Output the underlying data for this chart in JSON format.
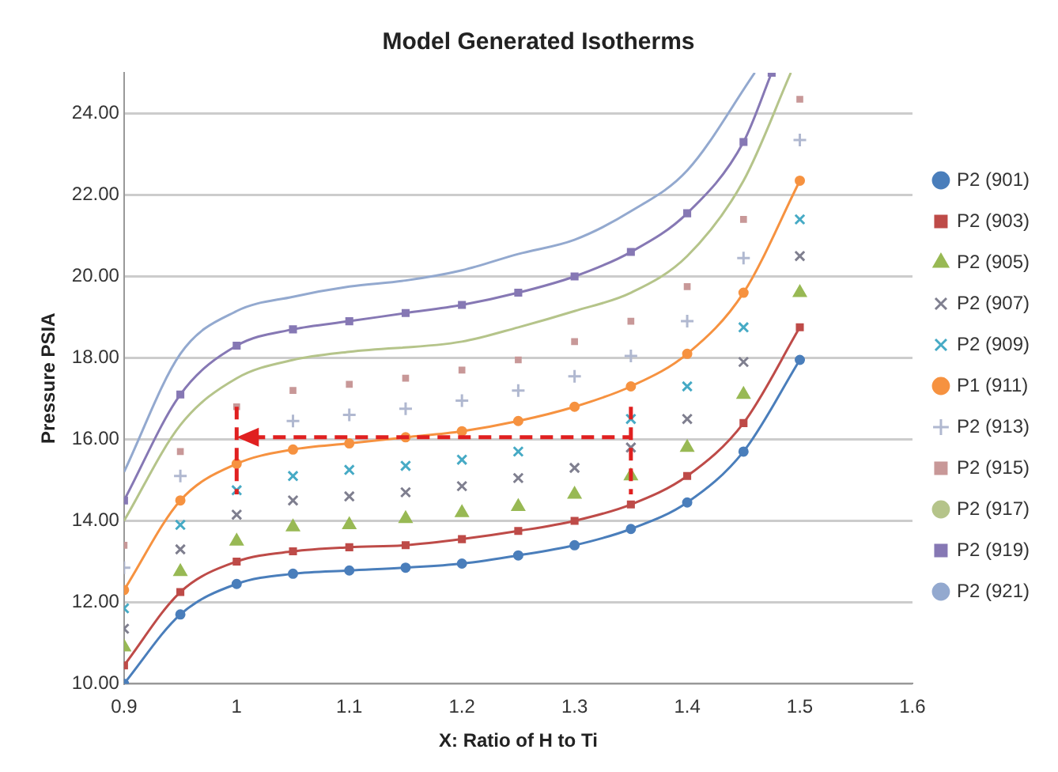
{
  "chart_data": {
    "type": "line",
    "title": "Model Generated Isotherms",
    "xlabel": "X: Ratio of H to Ti",
    "ylabel": "Pressure PSIA",
    "x": [
      0.9,
      0.95,
      1.0,
      1.05,
      1.1,
      1.15,
      1.2,
      1.25,
      1.3,
      1.35,
      1.4,
      1.45,
      1.5
    ],
    "xlim": [
      0.9,
      1.6
    ],
    "xticks": [
      0.9,
      1,
      1.1,
      1.2,
      1.3,
      1.4,
      1.5,
      1.6
    ],
    "ylim": [
      10,
      25
    ],
    "yticks": [
      {
        "value": 10,
        "label": "10.00"
      },
      {
        "value": 12,
        "label": "12.00"
      },
      {
        "value": 14,
        "label": "14.00"
      },
      {
        "value": 16,
        "label": "16.00"
      },
      {
        "value": 18,
        "label": "18.00"
      },
      {
        "value": 20,
        "label": "20.00"
      },
      {
        "value": 22,
        "label": "22.00"
      },
      {
        "value": 24,
        "label": "24.00"
      }
    ],
    "grid": "y",
    "legend": "right",
    "series": [
      {
        "name": "P2 (901)",
        "color": "#4a7ebb",
        "marker": "circle",
        "values": [
          10.0,
          11.7,
          12.45,
          12.7,
          12.78,
          12.85,
          12.95,
          13.15,
          13.4,
          13.8,
          14.45,
          15.7,
          17.95
        ]
      },
      {
        "name": "P2 (903)",
        "color": "#be4b48",
        "marker": "square",
        "values": [
          10.45,
          12.25,
          13.0,
          13.25,
          13.35,
          13.4,
          13.55,
          13.75,
          14.0,
          14.4,
          15.1,
          16.4,
          18.75
        ]
      },
      {
        "name": "P2 (905)",
        "color": "#98b954",
        "type": "scatter",
        "marker": "triangle",
        "values": [
          10.9,
          12.75,
          13.5,
          13.85,
          13.9,
          14.05,
          14.2,
          14.35,
          14.65,
          15.1,
          15.8,
          17.1,
          19.6
        ]
      },
      {
        "name": "P2 (907)",
        "color": "#7f7f8f",
        "type": "scatter",
        "marker": "cross",
        "values": [
          11.35,
          13.3,
          14.15,
          14.5,
          14.6,
          14.7,
          14.85,
          15.05,
          15.3,
          15.8,
          16.5,
          17.9,
          20.5
        ]
      },
      {
        "name": "P2 (909)",
        "color": "#46aac5",
        "type": "scatter",
        "marker": "cross",
        "values": [
          11.85,
          13.9,
          14.75,
          15.1,
          15.25,
          15.35,
          15.5,
          15.7,
          null,
          16.5,
          17.3,
          18.75,
          21.4
        ]
      },
      {
        "name": "P1 (911)",
        "color": "#f69240",
        "marker": "circle",
        "values": [
          12.3,
          14.5,
          15.4,
          15.75,
          15.9,
          16.05,
          16.2,
          16.45,
          16.8,
          17.3,
          18.1,
          19.6,
          22.35
        ]
      },
      {
        "name": "P2 (913)",
        "color": "#b0b8d0",
        "type": "scatter",
        "marker": "plus",
        "values": [
          12.85,
          15.1,
          null,
          16.45,
          16.6,
          16.75,
          16.95,
          17.2,
          17.55,
          18.05,
          18.9,
          20.45,
          23.35
        ]
      },
      {
        "name": "P2 (915)",
        "color": "#c89898",
        "type": "scatter",
        "marker": "square",
        "values": [
          13.4,
          15.7,
          16.8,
          17.2,
          17.35,
          17.5,
          17.7,
          17.95,
          18.4,
          18.9,
          19.75,
          21.4,
          24.35
        ]
      },
      {
        "name": "P2 (917)",
        "color": "#b5c48a",
        "marker": "none",
        "x": [
          0.9,
          0.95,
          1.0,
          1.05,
          1.1,
          1.2,
          1.25,
          1.3,
          1.35,
          1.4,
          1.45,
          1.492
        ],
        "values": [
          14.0,
          16.35,
          17.5,
          17.95,
          18.15,
          18.4,
          18.75,
          19.15,
          19.6,
          20.5,
          22.35,
          25
        ]
      },
      {
        "name": "P2 (919)",
        "color": "#8678b4",
        "marker": "square",
        "x": [
          0.9,
          0.95,
          1.0,
          1.05,
          1.1,
          1.15,
          1.2,
          1.25,
          1.3,
          1.35,
          1.4,
          1.45,
          1.475
        ],
        "values": [
          14.5,
          17.1,
          18.3,
          18.7,
          18.9,
          19.1,
          19.3,
          19.6,
          20.0,
          20.6,
          21.55,
          23.3,
          25
        ]
      },
      {
        "name": "P2 (921)",
        "color": "#93a9cf",
        "marker": "none",
        "x": [
          0.9,
          0.95,
          1.0,
          1.05,
          1.1,
          1.15,
          1.2,
          1.25,
          1.3,
          1.35,
          1.4,
          1.46
        ],
        "values": [
          15.2,
          18.1,
          19.15,
          19.5,
          19.75,
          19.9,
          20.15,
          20.55,
          20.9,
          21.6,
          22.6,
          25
        ]
      }
    ]
  }
}
